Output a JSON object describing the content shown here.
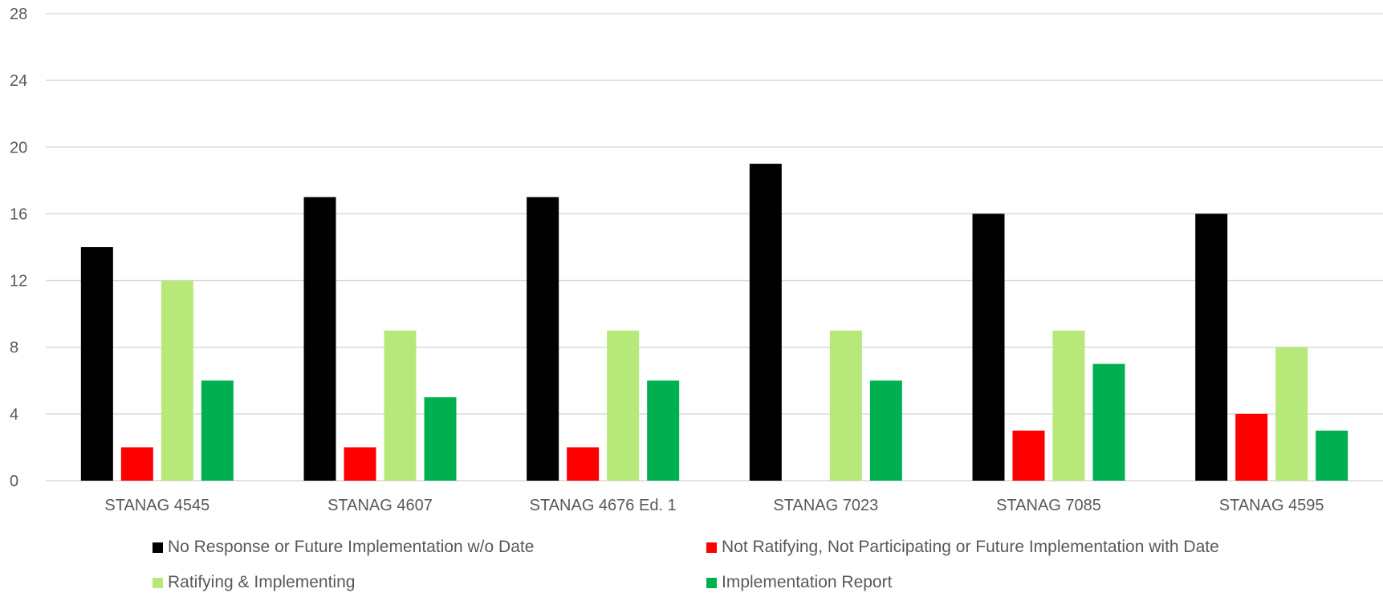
{
  "chart_data": {
    "type": "bar",
    "categories": [
      "STANAG 4545",
      "STANAG 4607",
      "STANAG 4676 Ed. 1",
      "STANAG 7023",
      "STANAG 7085",
      "STANAG 4595"
    ],
    "series": [
      {
        "name": "No Response or Future Implementation w/o Date",
        "color": "#000000",
        "values": [
          14,
          17,
          17,
          19,
          16,
          16
        ]
      },
      {
        "name": "Not Ratifying, Not Participating or Future Implementation with Date",
        "color": "#ff0000",
        "values": [
          2,
          2,
          2,
          0,
          3,
          4
        ]
      },
      {
        "name": "Ratifying & Implementing",
        "color": "#b6e97a",
        "values": [
          12,
          9,
          9,
          9,
          9,
          8
        ]
      },
      {
        "name": "Implementation Report",
        "color": "#00b050",
        "values": [
          6,
          5,
          6,
          6,
          7,
          3
        ]
      }
    ],
    "yticks": [
      "0",
      "4",
      "8",
      "12",
      "16",
      "20",
      "24",
      "28"
    ],
    "ylim": [
      0,
      28
    ],
    "grid": true,
    "legend_position": "bottom"
  }
}
